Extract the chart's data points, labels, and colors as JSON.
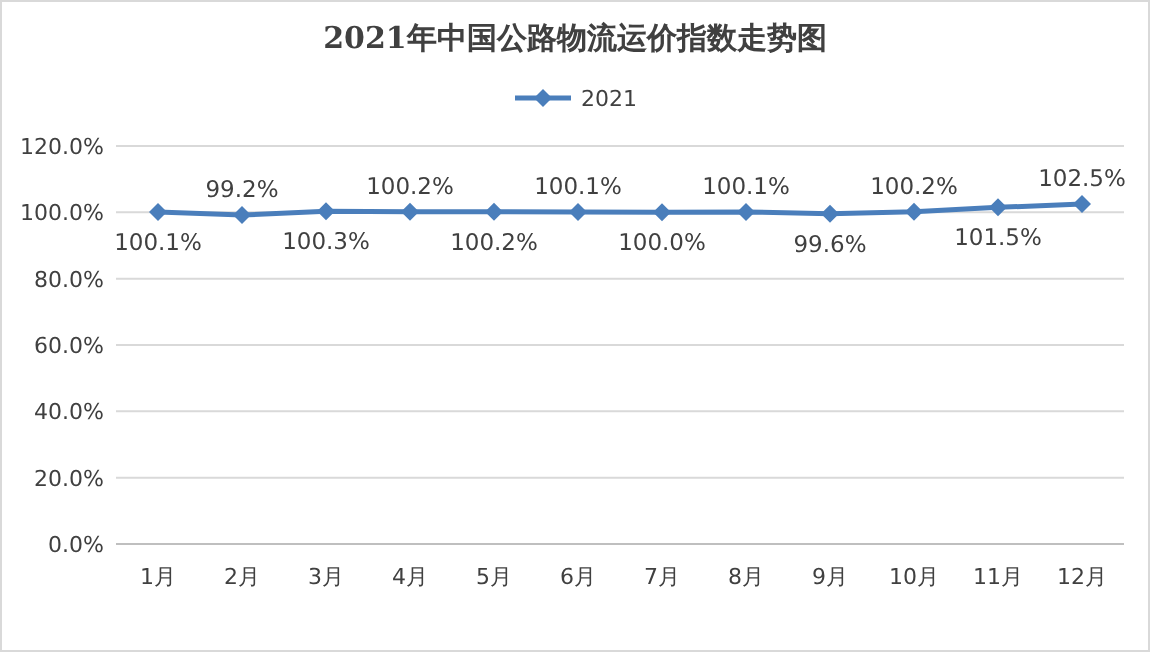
{
  "chart_data": {
    "type": "line",
    "title": "2021年中国公路物流运价指数走势图",
    "categories": [
      "1月",
      "2月",
      "3月",
      "4月",
      "5月",
      "6月",
      "7月",
      "8月",
      "9月",
      "10月",
      "11月",
      "12月"
    ],
    "series": [
      {
        "name": "2021",
        "color": "#4a7ebb",
        "values": [
          100.1,
          99.2,
          100.3,
          100.2,
          100.2,
          100.1,
          100.0,
          100.1,
          99.6,
          100.2,
          101.5,
          102.5
        ],
        "value_labels": [
          "100.1%",
          "99.2%",
          "100.3%",
          "100.2%",
          "100.2%",
          "100.1%",
          "100.0%",
          "100.1%",
          "99.6%",
          "100.2%",
          "101.5%",
          "102.5%"
        ]
      }
    ],
    "ylim": [
      0,
      120
    ],
    "yticks": [
      {
        "value": 0,
        "label": "0.0%"
      },
      {
        "value": 20,
        "label": "20.0%"
      },
      {
        "value": 40,
        "label": "40.0%"
      },
      {
        "value": 60,
        "label": "60.0%"
      },
      {
        "value": 80,
        "label": "80.0%"
      },
      {
        "value": 100,
        "label": "100.0%"
      },
      {
        "value": 120,
        "label": "120.0%"
      }
    ],
    "grid": "y",
    "legend": "top",
    "marker": "diamond",
    "line_style": "solid"
  }
}
